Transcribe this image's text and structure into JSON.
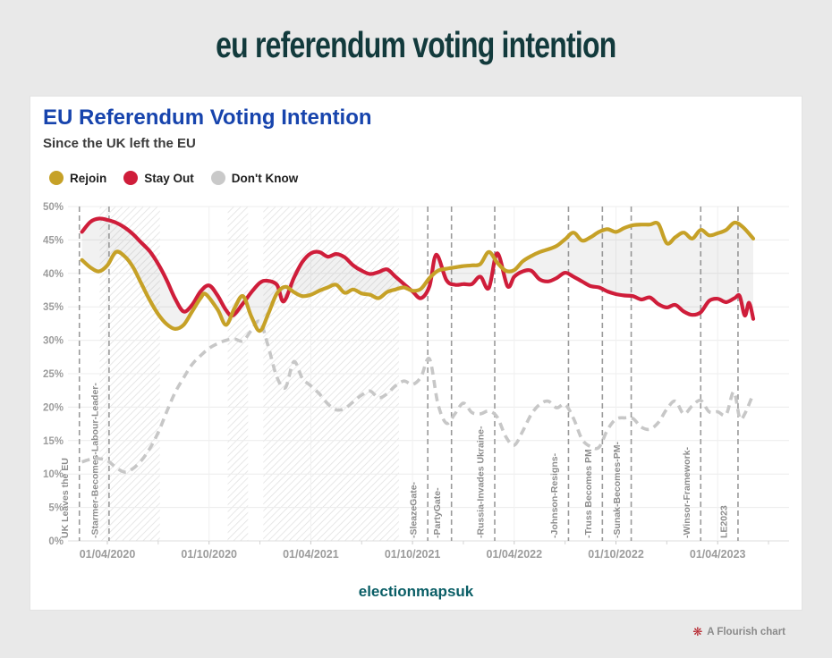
{
  "page_title": "eu referendum voting intention",
  "card": {
    "title": "EU Referendum Voting Intention",
    "subtitle": "Since the UK left the EU"
  },
  "legend": [
    {
      "label": "Rejoin",
      "color": "#c6a127"
    },
    {
      "label": "Stay Out",
      "color": "#cf1d3a"
    },
    {
      "label": "Don't Know",
      "color": "#c9c9c9"
    }
  ],
  "footer": {
    "source": "electionmapsuk",
    "attribution": "A Flourish chart",
    "attribution_icon": "flourish-flower-icon"
  },
  "colors": {
    "banner_text": "#123a3c",
    "card_title": "#1744ad",
    "rejoin": "#c6a127",
    "stay_out": "#cf1d3a",
    "dont_know": "#c7c7c7",
    "axis_text": "#9c9c9c",
    "event_line": "#9a9a9a",
    "gridline": "#ececec",
    "band_hatch": "#e0e0e0",
    "between_fill": "rgba(120,120,120,0.10)"
  },
  "chart_data": {
    "type": "line",
    "title": "EU Referendum Voting Intention",
    "subtitle": "Since the UK left the EU",
    "x_unit": "months since 2020-01-01 (t)",
    "x_range_t": [
      0.6,
      43.2
    ],
    "ylim": [
      0,
      50
    ],
    "y_step": 5,
    "y_format": "percent",
    "grid": true,
    "legend_position": "top-left",
    "x_ticks": [
      {
        "t": 3,
        "label": "01/04/2020"
      },
      {
        "t": 9,
        "label": "01/10/2020"
      },
      {
        "t": 15,
        "label": "01/04/2021"
      },
      {
        "t": 21,
        "label": "01/10/2021"
      },
      {
        "t": 27,
        "label": "01/04/2022"
      },
      {
        "t": 33,
        "label": "01/10/2022"
      },
      {
        "t": 39,
        "label": "01/04/2023"
      }
    ],
    "minor_tick_t": [
      6,
      12,
      18,
      24,
      30,
      36,
      42
    ],
    "bands": [
      {
        "from": 2.55,
        "to": 6.1
      },
      {
        "from": 10.1,
        "to": 11.3
      },
      {
        "from": 12.2,
        "to": 20.2
      }
    ],
    "events": [
      {
        "t": 1.35,
        "label": "UK Leaves the EU"
      },
      {
        "t": 3.1,
        "label": "-Starmer-Becomes-Labour-Leader-"
      },
      {
        "t": 21.9,
        "label": "-SleazeGate-"
      },
      {
        "t": 23.3,
        "label": "-PartyGate-"
      },
      {
        "t": 25.85,
        "label": "-Russia-Invades Ukraine-"
      },
      {
        "t": 30.2,
        "label": "-Johnson-Resigns-"
      },
      {
        "t": 32.2,
        "label": "-Truss Becomes PM"
      },
      {
        "t": 33.9,
        "label": "-Sunak-Becomes-PM-"
      },
      {
        "t": 38.0,
        "label": "-Winsor-Framework-"
      },
      {
        "t": 40.2,
        "label": "LE2023"
      }
    ],
    "series": [
      {
        "name": "Rejoin",
        "color": "#c6a127",
        "dashed": false,
        "points": [
          [
            1.5,
            42
          ],
          [
            2,
            40.9
          ],
          [
            2.5,
            40.3
          ],
          [
            3,
            41.2
          ],
          [
            3.5,
            43.2
          ],
          [
            4,
            42.6
          ],
          [
            4.5,
            41
          ],
          [
            5,
            38.5
          ],
          [
            5.5,
            36
          ],
          [
            6,
            33.9
          ],
          [
            6.5,
            32.4
          ],
          [
            7,
            31.7
          ],
          [
            7.5,
            32.3
          ],
          [
            8,
            34.3
          ],
          [
            8.5,
            36.3
          ],
          [
            8.8,
            36.9
          ],
          [
            9.5,
            34.6
          ],
          [
            10,
            32.3
          ],
          [
            10.5,
            34.8
          ],
          [
            11,
            36.6
          ],
          [
            11.5,
            33.5
          ],
          [
            12,
            31.4
          ],
          [
            12.5,
            34
          ],
          [
            13,
            37
          ],
          [
            13.5,
            38
          ],
          [
            14,
            37.2
          ],
          [
            14.5,
            36.6
          ],
          [
            15,
            36.8
          ],
          [
            15.5,
            37.4
          ],
          [
            16,
            37.9
          ],
          [
            16.5,
            38.3
          ],
          [
            17,
            37.1
          ],
          [
            17.5,
            37.6
          ],
          [
            18,
            37
          ],
          [
            18.5,
            36.8
          ],
          [
            19,
            36.3
          ],
          [
            19.5,
            37.2
          ],
          [
            20,
            37.6
          ],
          [
            20.5,
            37.9
          ],
          [
            21,
            37.4
          ],
          [
            21.5,
            37.7
          ],
          [
            22,
            39.3
          ],
          [
            22.5,
            40.4
          ],
          [
            23,
            40.7
          ],
          [
            23.5,
            40.9
          ],
          [
            24,
            41.1
          ],
          [
            24.5,
            41.2
          ],
          [
            25,
            41.4
          ],
          [
            25.5,
            43.2
          ],
          [
            26,
            41.6
          ],
          [
            26.5,
            40.4
          ],
          [
            27,
            40.5
          ],
          [
            27.5,
            41.8
          ],
          [
            28,
            42.6
          ],
          [
            28.5,
            43.2
          ],
          [
            29,
            43.6
          ],
          [
            29.5,
            44.1
          ],
          [
            30,
            45.1
          ],
          [
            30.5,
            46.1
          ],
          [
            31,
            44.9
          ],
          [
            31.5,
            45.4
          ],
          [
            32,
            46.2
          ],
          [
            32.5,
            46.6
          ],
          [
            33,
            46.2
          ],
          [
            33.5,
            46.8
          ],
          [
            34,
            47.2
          ],
          [
            34.5,
            47.3
          ],
          [
            35,
            47.3
          ],
          [
            35.5,
            47.4
          ],
          [
            36,
            44.5
          ],
          [
            36.5,
            45.4
          ],
          [
            37,
            46.1
          ],
          [
            37.5,
            45.2
          ],
          [
            38,
            46.5
          ],
          [
            38.5,
            45.7
          ],
          [
            39,
            46
          ],
          [
            39.5,
            46.5
          ],
          [
            40,
            47.6
          ],
          [
            40.5,
            46.9
          ],
          [
            41.1,
            45.2
          ]
        ]
      },
      {
        "name": "Stay Out",
        "color": "#cf1d3a",
        "dashed": false,
        "points": [
          [
            1.5,
            46.2
          ],
          [
            2,
            47.7
          ],
          [
            2.5,
            48.2
          ],
          [
            3,
            48
          ],
          [
            3.5,
            47.6
          ],
          [
            4,
            46.9
          ],
          [
            4.5,
            45.9
          ],
          [
            5,
            44.6
          ],
          [
            5.5,
            43.3
          ],
          [
            6,
            41.4
          ],
          [
            6.5,
            39
          ],
          [
            7,
            36.2
          ],
          [
            7.5,
            34.3
          ],
          [
            8,
            35.3
          ],
          [
            8.5,
            37.3
          ],
          [
            9,
            38.2
          ],
          [
            9.5,
            36.7
          ],
          [
            10,
            34.5
          ],
          [
            10.4,
            33.7
          ],
          [
            11,
            35.5
          ],
          [
            11.5,
            37.2
          ],
          [
            12,
            38.6
          ],
          [
            12.4,
            38.9
          ],
          [
            13,
            38.3
          ],
          [
            13.4,
            35.8
          ],
          [
            14,
            39.3
          ],
          [
            14.5,
            41.7
          ],
          [
            15,
            43
          ],
          [
            15.5,
            43.2
          ],
          [
            16,
            42.5
          ],
          [
            16.5,
            42.9
          ],
          [
            17,
            42.4
          ],
          [
            17.5,
            41.2
          ],
          [
            18,
            40.4
          ],
          [
            18.5,
            39.9
          ],
          [
            19,
            40.2
          ],
          [
            19.5,
            40.6
          ],
          [
            20,
            39.5
          ],
          [
            20.5,
            38.4
          ],
          [
            21,
            37.3
          ],
          [
            21.5,
            36.3
          ],
          [
            22,
            38.1
          ],
          [
            22.4,
            42.8
          ],
          [
            23,
            39
          ],
          [
            23.5,
            38.3
          ],
          [
            24,
            38.4
          ],
          [
            24.5,
            38.4
          ],
          [
            25,
            39.5
          ],
          [
            25.5,
            37.8
          ],
          [
            26,
            43
          ],
          [
            26.6,
            38.1
          ],
          [
            27,
            39.5
          ],
          [
            27.5,
            40.3
          ],
          [
            28,
            40.4
          ],
          [
            28.5,
            39.1
          ],
          [
            29,
            38.8
          ],
          [
            29.5,
            39.3
          ],
          [
            30,
            40.1
          ],
          [
            30.5,
            39.5
          ],
          [
            31,
            38.8
          ],
          [
            31.5,
            38.1
          ],
          [
            32,
            37.9
          ],
          [
            32.5,
            37.3
          ],
          [
            33,
            36.9
          ],
          [
            33.5,
            36.7
          ],
          [
            34,
            36.6
          ],
          [
            34.5,
            36.1
          ],
          [
            35,
            36.4
          ],
          [
            35.5,
            35.4
          ],
          [
            36,
            34.9
          ],
          [
            36.5,
            35.3
          ],
          [
            37,
            34.3
          ],
          [
            37.5,
            33.8
          ],
          [
            38,
            34.2
          ],
          [
            38.5,
            35.9
          ],
          [
            39,
            36.2
          ],
          [
            39.5,
            35.7
          ],
          [
            40,
            36.3
          ],
          [
            40.3,
            36.6
          ],
          [
            40.6,
            33.7
          ],
          [
            40.85,
            35.6
          ],
          [
            41.1,
            33.2
          ]
        ]
      },
      {
        "name": "Don't Know",
        "color": "#c7c7c7",
        "dashed": true,
        "points": [
          [
            1.5,
            11.8
          ],
          [
            2,
            12.2
          ],
          [
            2.5,
            12.3
          ],
          [
            3,
            12
          ],
          [
            3.5,
            11
          ],
          [
            4,
            10.3
          ],
          [
            4.5,
            10.8
          ],
          [
            5,
            12
          ],
          [
            5.5,
            13.8
          ],
          [
            6,
            16.2
          ],
          [
            6.5,
            19.3
          ],
          [
            7,
            22.2
          ],
          [
            7.5,
            24.4
          ],
          [
            8,
            26.4
          ],
          [
            8.5,
            27.7
          ],
          [
            9,
            28.8
          ],
          [
            9.5,
            29.5
          ],
          [
            10,
            30
          ],
          [
            10.5,
            30.2
          ],
          [
            11,
            29.9
          ],
          [
            11.5,
            31.5
          ],
          [
            12,
            32.8
          ],
          [
            12.5,
            29
          ],
          [
            13,
            24.5
          ],
          [
            13.5,
            22.9
          ],
          [
            14,
            26.8
          ],
          [
            14.5,
            24.3
          ],
          [
            15,
            23.2
          ],
          [
            15.5,
            22
          ],
          [
            16,
            20.5
          ],
          [
            16.5,
            19.6
          ],
          [
            17,
            19.8
          ],
          [
            17.5,
            20.8
          ],
          [
            18,
            21.8
          ],
          [
            18.5,
            22.4
          ],
          [
            19,
            21.4
          ],
          [
            19.5,
            22
          ],
          [
            20,
            23.2
          ],
          [
            20.5,
            23.9
          ],
          [
            21,
            23.4
          ],
          [
            21.5,
            24.5
          ],
          [
            22,
            27.2
          ],
          [
            22.5,
            20.5
          ],
          [
            23,
            17.6
          ],
          [
            23.5,
            19
          ],
          [
            24,
            20.6
          ],
          [
            24.5,
            19.2
          ],
          [
            25,
            19
          ],
          [
            25.5,
            19.4
          ],
          [
            26,
            18.5
          ],
          [
            26.5,
            15.6
          ],
          [
            27,
            14.3
          ],
          [
            27.5,
            16.4
          ],
          [
            28,
            18.9
          ],
          [
            28.5,
            20.4
          ],
          [
            29,
            20.9
          ],
          [
            29.5,
            19.9
          ],
          [
            30,
            20.4
          ],
          [
            30.5,
            18.3
          ],
          [
            31,
            15.2
          ],
          [
            31.5,
            14.1
          ],
          [
            32,
            14
          ],
          [
            32.5,
            16.6
          ],
          [
            33,
            18.2
          ],
          [
            33.5,
            18.4
          ],
          [
            34,
            18.3
          ],
          [
            34.5,
            17
          ],
          [
            35,
            16.7
          ],
          [
            35.5,
            17.7
          ],
          [
            36,
            19.7
          ],
          [
            36.5,
            20.9
          ],
          [
            37,
            19
          ],
          [
            37.5,
            20.2
          ],
          [
            38,
            21
          ],
          [
            38.5,
            19.3
          ],
          [
            39,
            19.3
          ],
          [
            39.5,
            18.9
          ],
          [
            39.95,
            22.3
          ],
          [
            40.3,
            18.4
          ],
          [
            40.6,
            19
          ],
          [
            41.1,
            22
          ]
        ]
      }
    ]
  }
}
